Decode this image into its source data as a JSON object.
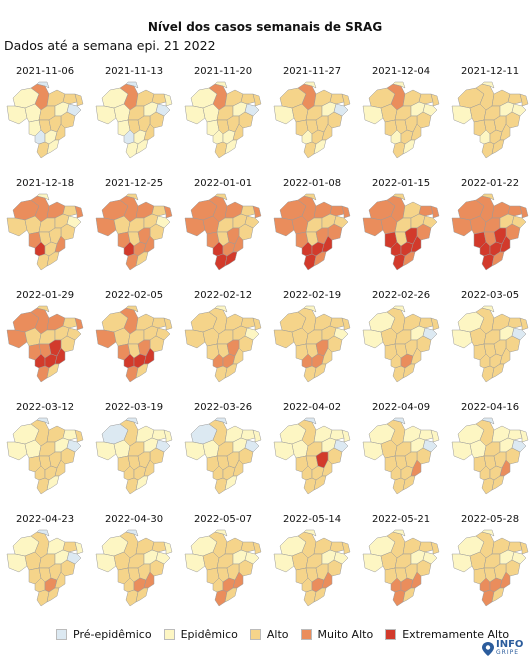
{
  "title": "Nível dos casos semanais de SRAG",
  "subtitle": "Dados até a semana epi. 21 2022",
  "levels": [
    {
      "label": "Pré-epidêmico",
      "color": "#dce9f2"
    },
    {
      "label": "Epidêmico",
      "color": "#fdf6c3"
    },
    {
      "label": "Alto",
      "color": "#f5d48a"
    },
    {
      "label": "Muito Alto",
      "color": "#ea8d5c"
    },
    {
      "label": "Extremamente Alto",
      "color": "#d23a2b"
    }
  ],
  "weeks": [
    {
      "date": "2021-11-06",
      "levels": [
        1,
        1,
        3,
        2,
        0,
        2,
        2,
        1,
        2,
        1,
        0,
        2,
        1,
        2,
        2,
        0,
        1,
        2,
        2,
        1
      ]
    },
    {
      "date": "2021-11-13",
      "levels": [
        1,
        1,
        3,
        2,
        0,
        2,
        1,
        1,
        2,
        1,
        0,
        2,
        1,
        2,
        2,
        0,
        1,
        2,
        1,
        1
      ]
    },
    {
      "date": "2021-11-20",
      "levels": [
        1,
        1,
        3,
        2,
        1,
        2,
        2,
        1,
        2,
        1,
        0,
        2,
        1,
        2,
        2,
        1,
        1,
        2,
        2,
        1
      ]
    },
    {
      "date": "2021-11-27",
      "levels": [
        2,
        1,
        3,
        2,
        1,
        2,
        2,
        2,
        2,
        1,
        0,
        2,
        2,
        2,
        2,
        1,
        2,
        2,
        2,
        1
      ]
    },
    {
      "date": "2021-12-04",
      "levels": [
        2,
        1,
        3,
        2,
        1,
        2,
        2,
        2,
        2,
        1,
        1,
        2,
        2,
        2,
        2,
        1,
        2,
        2,
        2,
        1
      ]
    },
    {
      "date": "2021-12-11",
      "levels": [
        2,
        1,
        2,
        2,
        1,
        2,
        2,
        2,
        2,
        1,
        1,
        2,
        2,
        2,
        2,
        1,
        2,
        2,
        2,
        2
      ]
    },
    {
      "date": "2021-12-18",
      "levels": [
        3,
        2,
        3,
        3,
        1,
        2,
        3,
        2,
        2,
        2,
        1,
        2,
        3,
        2,
        2,
        4,
        2,
        3,
        2,
        2
      ]
    },
    {
      "date": "2021-12-25",
      "levels": [
        3,
        3,
        3,
        3,
        2,
        2,
        3,
        2,
        2,
        2,
        1,
        2,
        3,
        2,
        3,
        4,
        3,
        3,
        3,
        2
      ]
    },
    {
      "date": "2022-01-01",
      "levels": [
        3,
        3,
        3,
        3,
        2,
        2,
        3,
        3,
        2,
        2,
        2,
        2,
        3,
        2,
        3,
        4,
        3,
        3,
        4,
        4
      ]
    },
    {
      "date": "2022-01-08",
      "levels": [
        3,
        3,
        3,
        3,
        2,
        3,
        3,
        3,
        2,
        2,
        2,
        3,
        3,
        2,
        3,
        4,
        4,
        4,
        4,
        3
      ]
    },
    {
      "date": "2022-01-15",
      "levels": [
        3,
        3,
        3,
        2,
        2,
        3,
        3,
        3,
        2,
        2,
        2,
        3,
        4,
        2,
        4,
        4,
        4,
        4,
        4,
        3
      ]
    },
    {
      "date": "2022-01-22",
      "levels": [
        3,
        3,
        3,
        3,
        2,
        3,
        3,
        3,
        3,
        2,
        2,
        3,
        4,
        3,
        4,
        4,
        4,
        4,
        4,
        3
      ]
    },
    {
      "date": "2022-01-29",
      "levels": [
        3,
        3,
        3,
        3,
        2,
        2,
        3,
        2,
        2,
        2,
        2,
        2,
        3,
        3,
        4,
        4,
        4,
        4,
        3,
        2
      ]
    },
    {
      "date": "2022-02-05",
      "levels": [
        2,
        3,
        3,
        2,
        2,
        2,
        2,
        2,
        2,
        2,
        2,
        2,
        3,
        2,
        3,
        4,
        4,
        4,
        3,
        2
      ]
    },
    {
      "date": "2022-02-12",
      "levels": [
        2,
        2,
        2,
        2,
        1,
        2,
        2,
        2,
        2,
        2,
        1,
        2,
        2,
        2,
        3,
        3,
        3,
        2,
        2,
        2
      ]
    },
    {
      "date": "2022-02-19",
      "levels": [
        2,
        2,
        2,
        2,
        1,
        2,
        2,
        2,
        2,
        2,
        1,
        2,
        2,
        2,
        3,
        3,
        3,
        2,
        2,
        2
      ]
    },
    {
      "date": "2022-02-26",
      "levels": [
        1,
        1,
        2,
        2,
        1,
        2,
        2,
        2,
        2,
        1,
        0,
        2,
        2,
        2,
        2,
        2,
        3,
        2,
        2,
        2
      ]
    },
    {
      "date": "2022-03-05",
      "levels": [
        1,
        1,
        2,
        2,
        1,
        2,
        2,
        2,
        2,
        1,
        0,
        2,
        2,
        2,
        2,
        2,
        2,
        2,
        2,
        2
      ]
    },
    {
      "date": "2022-03-12",
      "levels": [
        1,
        1,
        2,
        2,
        0,
        1,
        2,
        1,
        2,
        1,
        0,
        2,
        2,
        2,
        2,
        2,
        2,
        2,
        2,
        1
      ]
    },
    {
      "date": "2022-03-19",
      "levels": [
        0,
        1,
        2,
        1,
        0,
        1,
        1,
        1,
        2,
        1,
        0,
        2,
        2,
        2,
        2,
        2,
        2,
        2,
        2,
        1
      ]
    },
    {
      "date": "2022-03-26",
      "levels": [
        0,
        1,
        2,
        1,
        0,
        1,
        1,
        1,
        2,
        1,
        0,
        2,
        2,
        2,
        2,
        2,
        2,
        2,
        2,
        1
      ]
    },
    {
      "date": "2022-04-02",
      "levels": [
        1,
        1,
        2,
        1,
        0,
        1,
        1,
        1,
        2,
        1,
        0,
        2,
        2,
        2,
        4,
        2,
        2,
        2,
        2,
        2
      ]
    },
    {
      "date": "2022-04-09",
      "levels": [
        1,
        1,
        2,
        1,
        0,
        1,
        1,
        2,
        2,
        1,
        0,
        2,
        2,
        2,
        2,
        2,
        2,
        3,
        2,
        2
      ]
    },
    {
      "date": "2022-04-16",
      "levels": [
        1,
        1,
        2,
        1,
        0,
        1,
        1,
        1,
        2,
        1,
        0,
        2,
        2,
        2,
        2,
        2,
        2,
        3,
        2,
        2
      ]
    },
    {
      "date": "2022-04-23",
      "levels": [
        1,
        1,
        2,
        1,
        0,
        2,
        1,
        2,
        2,
        1,
        0,
        2,
        2,
        2,
        2,
        2,
        3,
        2,
        2,
        2
      ]
    },
    {
      "date": "2022-04-30",
      "levels": [
        1,
        1,
        2,
        2,
        0,
        2,
        1,
        2,
        2,
        1,
        1,
        2,
        2,
        2,
        2,
        2,
        3,
        3,
        2,
        2
      ]
    },
    {
      "date": "2022-05-07",
      "levels": [
        1,
        1,
        2,
        2,
        1,
        2,
        2,
        2,
        2,
        1,
        1,
        2,
        2,
        2,
        2,
        2,
        3,
        3,
        3,
        2
      ]
    },
    {
      "date": "2022-05-14",
      "levels": [
        1,
        1,
        2,
        2,
        1,
        2,
        2,
        2,
        2,
        1,
        1,
        2,
        2,
        2,
        2,
        2,
        3,
        3,
        2,
        2
      ]
    },
    {
      "date": "2022-05-21",
      "levels": [
        1,
        1,
        2,
        2,
        1,
        2,
        2,
        2,
        2,
        1,
        1,
        2,
        2,
        2,
        2,
        3,
        3,
        3,
        3,
        2
      ]
    },
    {
      "date": "2022-05-28",
      "levels": [
        1,
        1,
        2,
        2,
        1,
        2,
        2,
        2,
        2,
        1,
        1,
        2,
        2,
        2,
        2,
        3,
        3,
        3,
        3,
        2
      ]
    }
  ],
  "logo": {
    "line1": "INFO",
    "line2": "GRIPE"
  }
}
